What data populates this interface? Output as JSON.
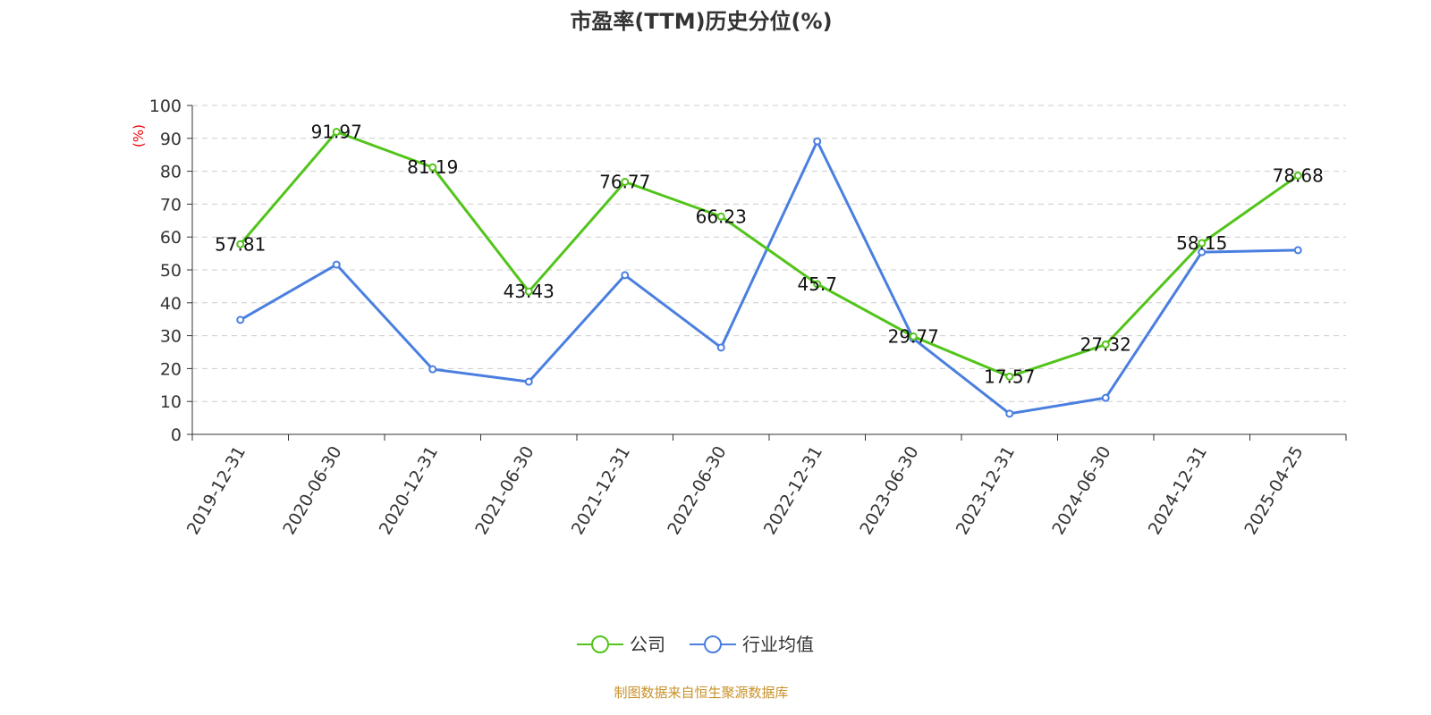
{
  "chart_data": {
    "type": "line",
    "title": "市盈率(TTM)历史分位(%)",
    "ylabel": "(%)",
    "xlabel": "",
    "ylim": [
      0,
      100
    ],
    "yticks": [
      0,
      10,
      20,
      30,
      40,
      50,
      60,
      70,
      80,
      90,
      100
    ],
    "grid": true,
    "legend_position": "bottom-center",
    "categories": [
      "2019-12-31",
      "2020-06-30",
      "2020-12-31",
      "2021-06-30",
      "2021-12-31",
      "2022-06-30",
      "2022-12-31",
      "2023-06-30",
      "2023-12-31",
      "2024-06-30",
      "2024-12-31",
      "2025-04-25"
    ],
    "series": [
      {
        "name": "公司",
        "color": "#52c41a",
        "values": [
          57.81,
          91.97,
          81.19,
          43.43,
          76.77,
          66.23,
          45.7,
          29.77,
          17.57,
          27.32,
          58.15,
          78.68
        ],
        "labels": [
          "57.81",
          "91.97",
          "81.19",
          "43.43",
          "76.77",
          "66.23",
          "45.7",
          "29.77",
          "17.57",
          "27.32",
          "58.15",
          "78.68"
        ]
      },
      {
        "name": "行业均值",
        "color": "#4a7fe0",
        "values": [
          34.8,
          51.6,
          19.8,
          16.0,
          48.4,
          26.4,
          89.1,
          29.1,
          6.3,
          11.1,
          55.4,
          56.0
        ]
      }
    ],
    "source": "制图数据来自恒生聚源数据库"
  }
}
